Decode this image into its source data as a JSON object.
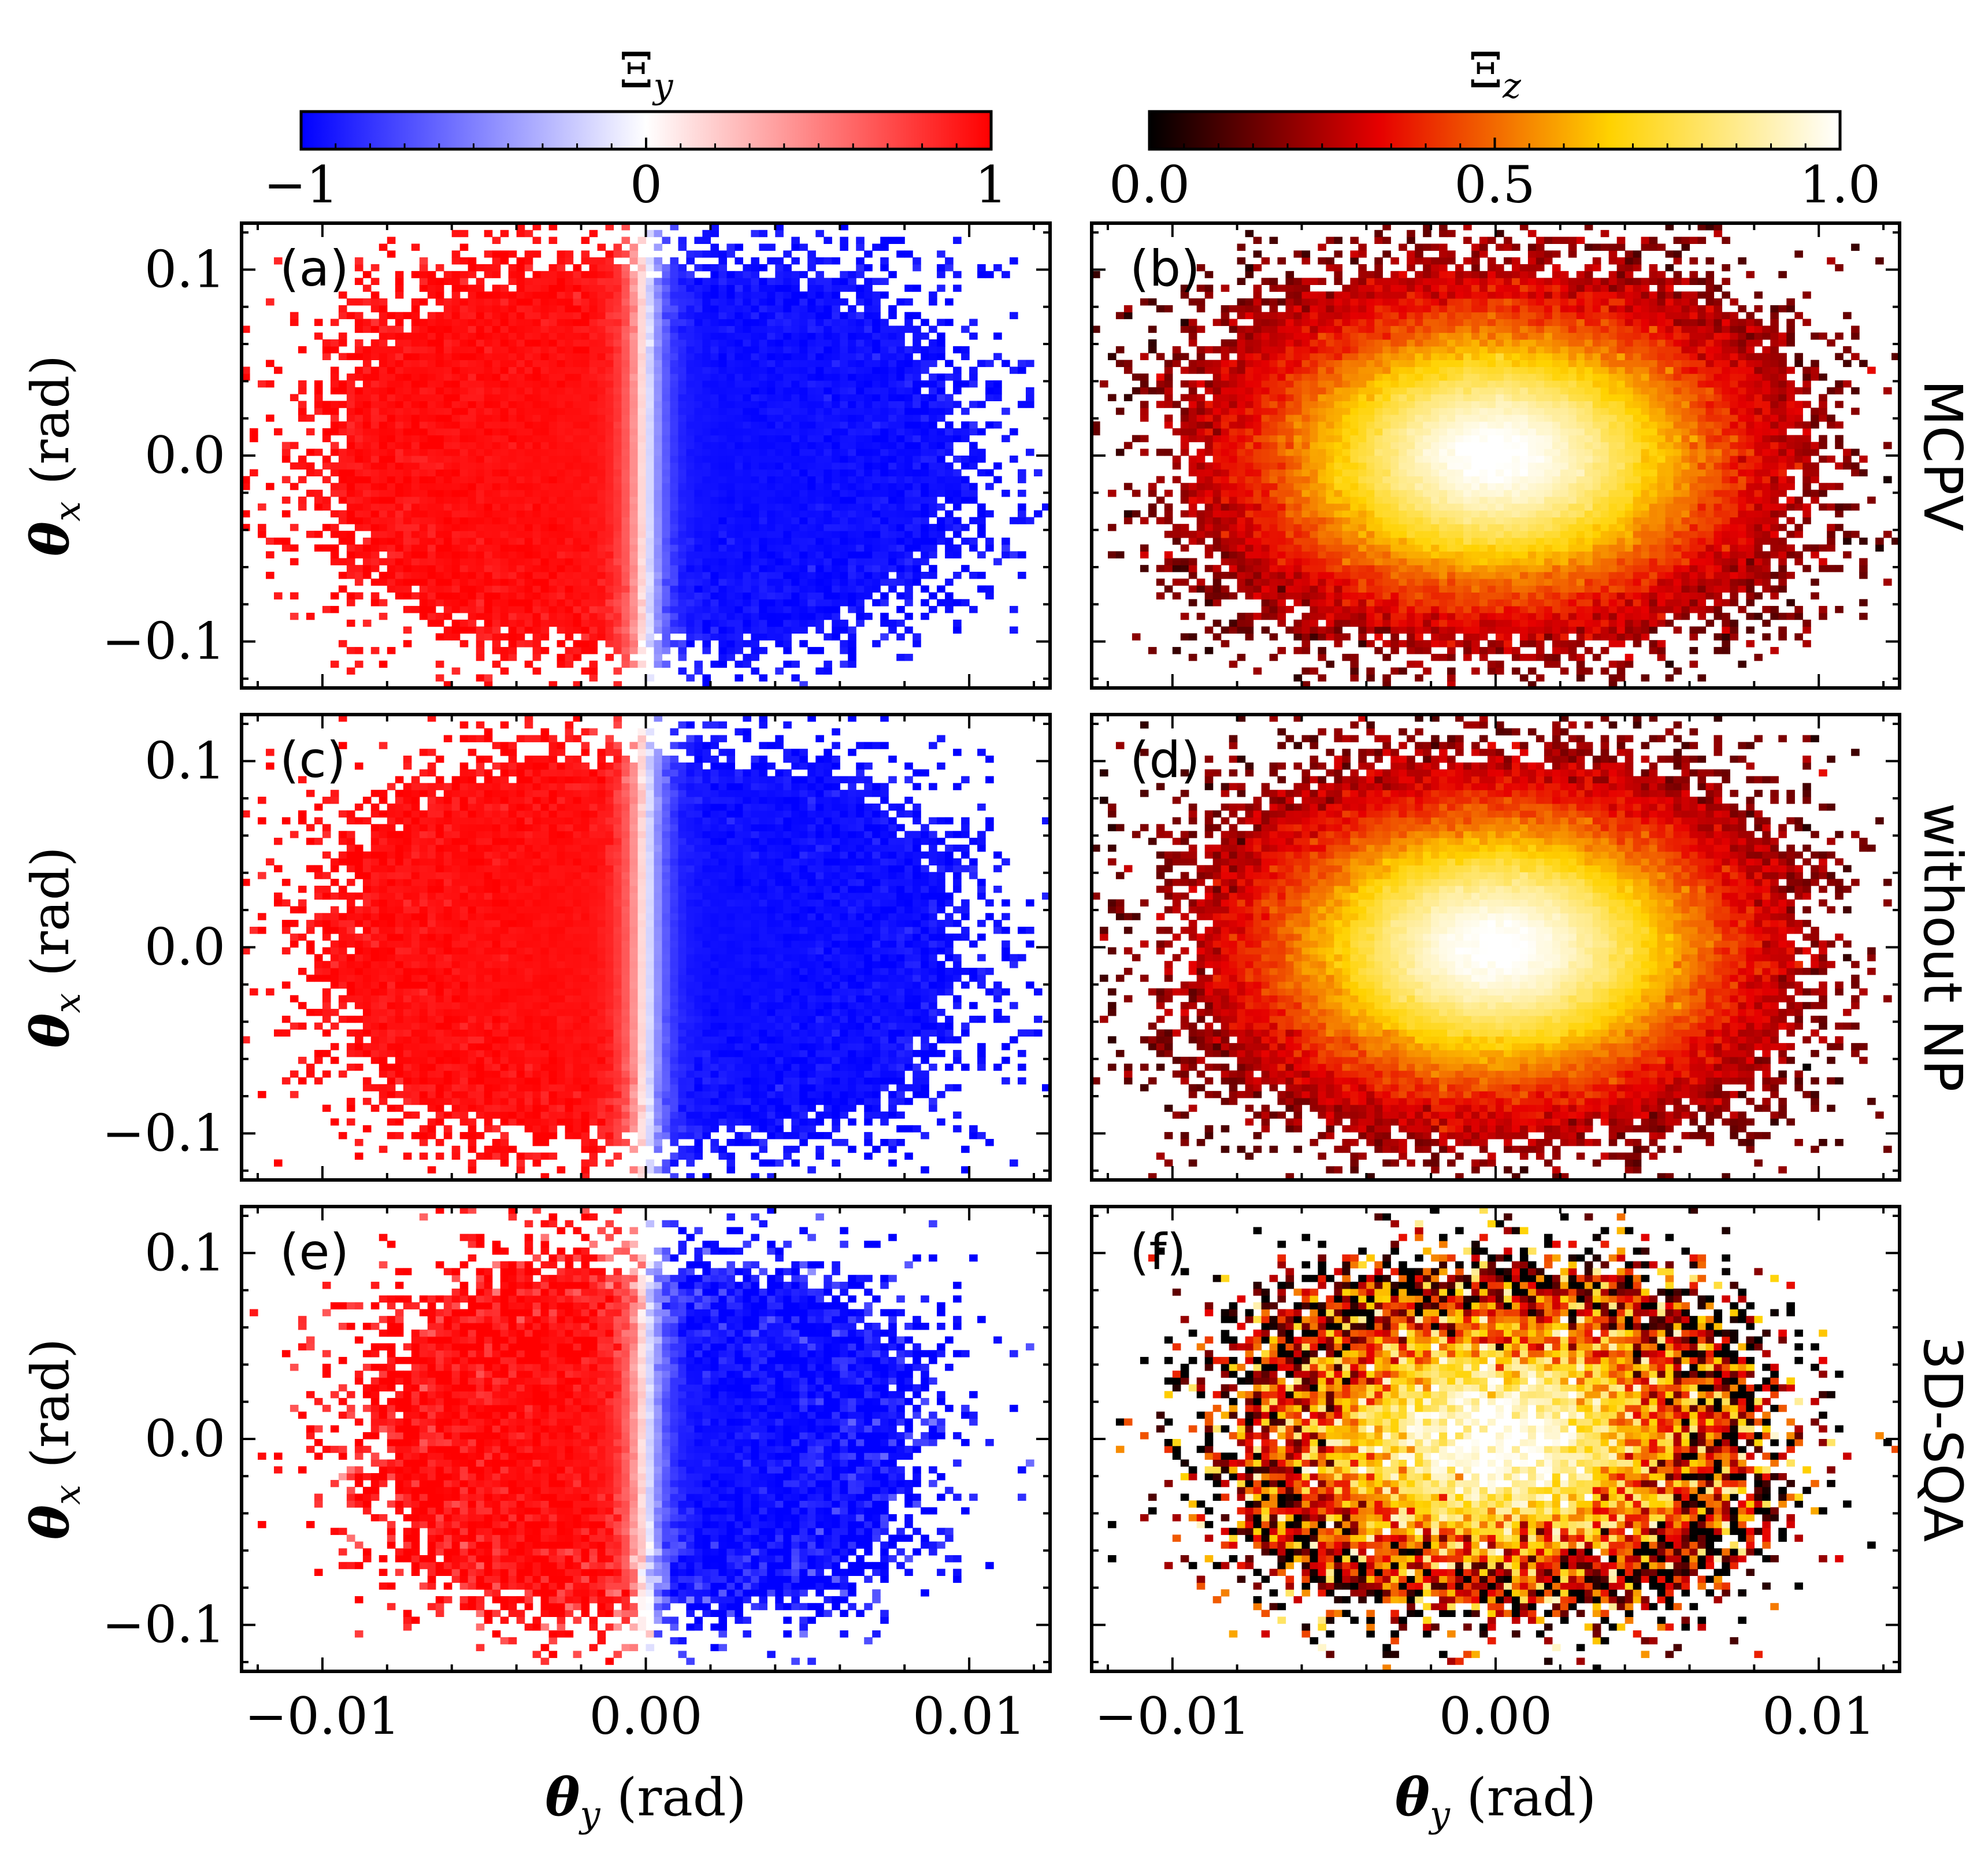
{
  "chart_data": {
    "type": "heatmap",
    "description_axes": {
      "xlabel_var": "θ",
      "xlabel_sub": "y",
      "xlabel_unit": " (rad)",
      "ylabel_var": "θ",
      "ylabel_sub": "x",
      "ylabel_unit": " (rad)",
      "xlim": [
        -0.0125,
        0.0125
      ],
      "ylim": [
        -0.125,
        0.125
      ],
      "xticks": [
        -0.01,
        0.0,
        0.01
      ],
      "xtick_labels": [
        "−0.01",
        "0.00",
        "0.01"
      ],
      "yticks": [
        -0.1,
        0.0,
        0.1
      ],
      "ytick_labels": [
        "−0.1",
        "0.0",
        "0.1"
      ]
    },
    "colorbars": [
      {
        "name": "Ξy",
        "label_var": "Ξ",
        "label_sub": "y",
        "colormap": "bwr",
        "range": [
          -1,
          1
        ],
        "ticks": [
          -1,
          0,
          1
        ],
        "tick_labels": [
          "−1",
          "0",
          "1"
        ],
        "colors": [
          "#0000ff",
          "#ffffff",
          "#ff0000"
        ]
      },
      {
        "name": "Ξz",
        "label_var": "Ξ",
        "label_sub": "z",
        "colormap": "hot",
        "range": [
          0.0,
          1.0
        ],
        "ticks": [
          0.0,
          0.5,
          1.0
        ],
        "tick_labels": [
          "0.0",
          "0.5",
          "1.0"
        ],
        "colors": [
          "#000000",
          "#e60000",
          "#ffd200",
          "#ffffff"
        ]
      }
    ],
    "rows": [
      "MCPV",
      "without NP",
      "3D-SQA"
    ],
    "panels": [
      {
        "label": "(a)",
        "row": "MCPV",
        "quantity": "Ξy",
        "model": "y_sign",
        "value_scale": 0.95,
        "spread": [
          0.0046,
          0.05
        ],
        "noise": 0.05,
        "seed": 11
      },
      {
        "label": "(b)",
        "row": "MCPV",
        "quantity": "Ξz",
        "model": "z_peak",
        "value_scale": 0.88,
        "spread": [
          0.0046,
          0.05
        ],
        "noise": 0.05,
        "seed": 12
      },
      {
        "label": "(c)",
        "row": "without NP",
        "quantity": "Ξy",
        "model": "y_sign",
        "value_scale": 0.95,
        "spread": [
          0.0046,
          0.05
        ],
        "noise": 0.05,
        "seed": 21
      },
      {
        "label": "(d)",
        "row": "without NP",
        "quantity": "Ξz",
        "model": "z_peak",
        "value_scale": 0.88,
        "spread": [
          0.0046,
          0.05
        ],
        "noise": 0.05,
        "seed": 22
      },
      {
        "label": "(e)",
        "row": "3D-SQA",
        "quantity": "Ξy",
        "model": "y_sign",
        "value_scale": 0.95,
        "spread": [
          0.004,
          0.045
        ],
        "noise": 0.14,
        "seed": 31
      },
      {
        "label": "(f)",
        "row": "3D-SQA",
        "quantity": "Ξz",
        "model": "z_peak",
        "value_scale": 0.88,
        "spread": [
          0.004,
          0.045
        ],
        "noise": 0.38,
        "seed": 32
      }
    ]
  }
}
